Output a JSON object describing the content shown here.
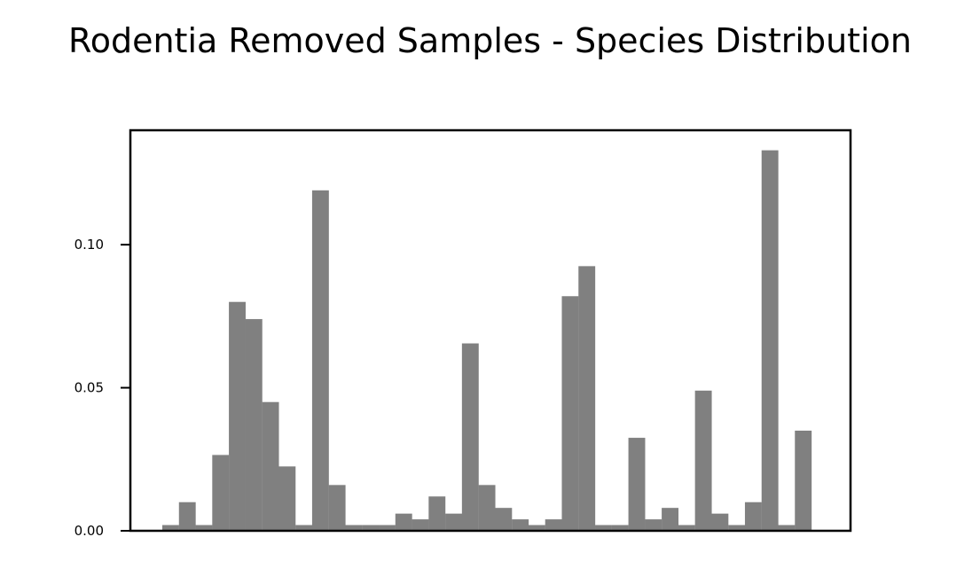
{
  "chart_data": {
    "type": "bar",
    "title": "Rodentia Removed Samples - Species Distribution",
    "xlabel": "",
    "ylabel": "",
    "ylim": [
      0,
      0.14
    ],
    "yticks": [
      {
        "value": 0.0,
        "label": "0.00"
      },
      {
        "value": 0.05,
        "label": "0.05"
      },
      {
        "value": 0.1,
        "label": "0.10"
      }
    ],
    "xticks_visible": false,
    "grid": false,
    "bar_color": "#808080",
    "values": [
      0.002,
      0.01,
      0.002,
      0.0265,
      0.08,
      0.074,
      0.045,
      0.0225,
      0.002,
      0.119,
      0.016,
      0.002,
      0.002,
      0.002,
      0.006,
      0.004,
      0.012,
      0.006,
      0.0655,
      0.016,
      0.008,
      0.004,
      0.002,
      0.004,
      0.082,
      0.0925,
      0.002,
      0.002,
      0.0325,
      0.004,
      0.008,
      0.002,
      0.049,
      0.006,
      0.002,
      0.01,
      0.133,
      0.002,
      0.035
    ]
  }
}
